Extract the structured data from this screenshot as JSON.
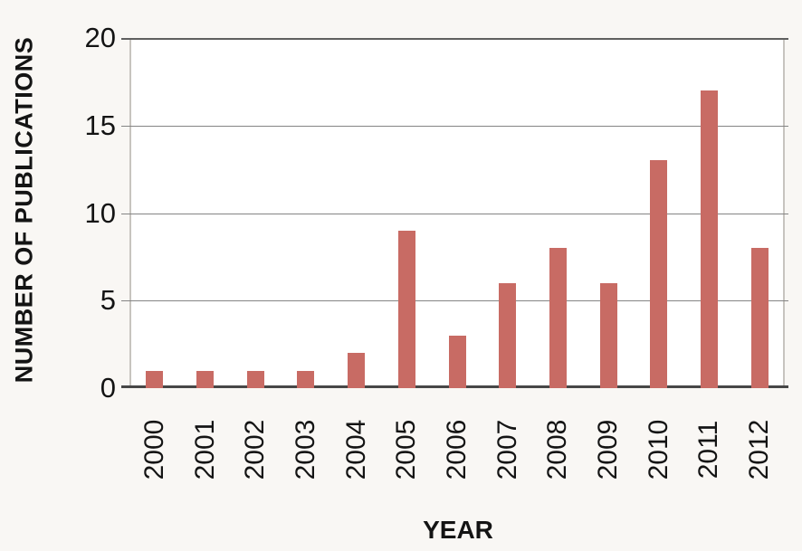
{
  "figure": {
    "background": "#f9f7f4",
    "plot_background": "#ffffff"
  },
  "chart_data": {
    "type": "bar",
    "title": "",
    "categories": [
      "2000",
      "2001",
      "2002",
      "2003",
      "2004",
      "2005",
      "2006",
      "2007",
      "2008",
      "2009",
      "2010",
      "2011",
      "2012"
    ],
    "values": [
      1,
      1,
      1,
      1,
      2,
      9,
      3,
      6,
      8,
      6,
      13,
      17,
      8
    ],
    "xlabel": "YEAR",
    "ylabel": "NUMBER OF PUBLICATIONS",
    "ylim": [
      0,
      20
    ],
    "yticks": [
      0,
      5,
      10,
      15,
      20
    ],
    "grid": "horizontal",
    "legend": "none",
    "bar_color": "#c86b64",
    "tick_label_color": "#141414"
  }
}
